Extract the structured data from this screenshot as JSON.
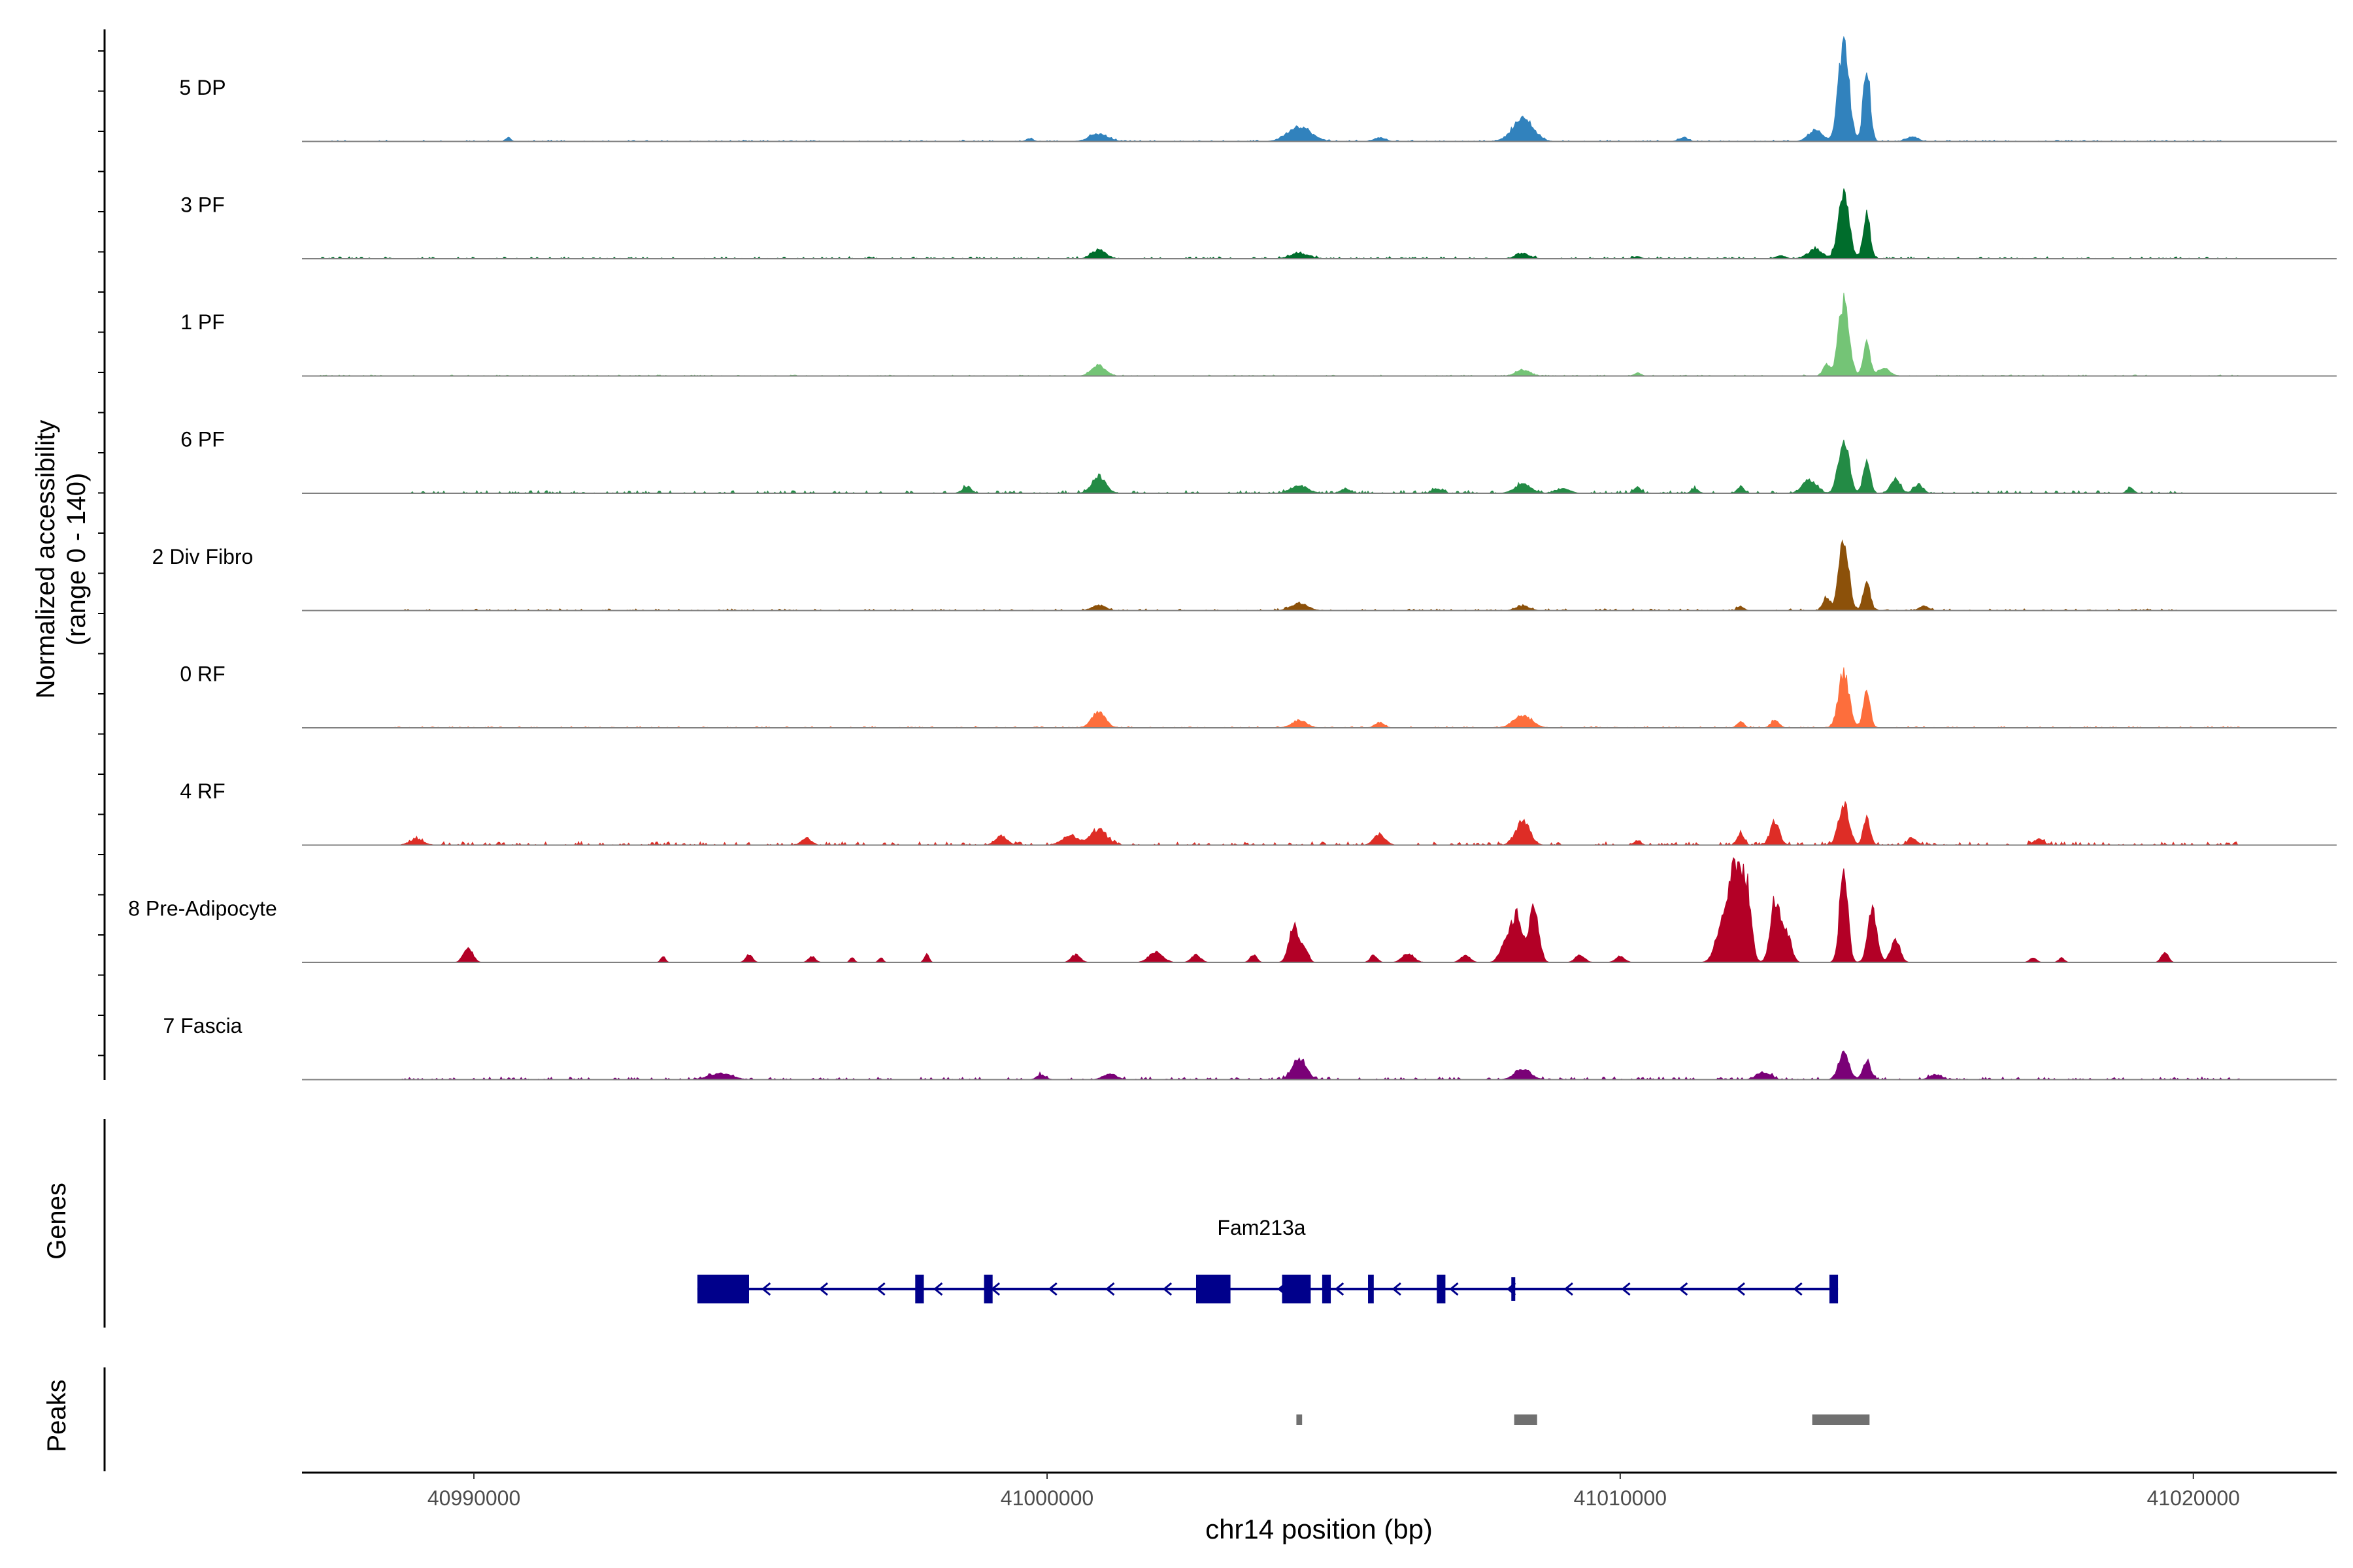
{
  "chart_data": {
    "type": "area",
    "title": "",
    "ylabel_line1": "Normalized accessibility",
    "ylabel_line2": "(range 0 - 140)",
    "y_range": [
      0,
      140
    ],
    "xlabel": "chr14 position (bp)",
    "xlim": [
      40987000,
      41022500
    ],
    "x_ticks": [
      40990000,
      41000000,
      41010000,
      41020000
    ],
    "x_tick_labels": [
      "40990000",
      "41000000",
      "41010000",
      "41020000"
    ],
    "tracks": [
      {
        "name": "5 DP",
        "color": "#3182bd",
        "noise": 0.02,
        "range": [
          40987300,
          41020800
        ],
        "peaks": [
          [
            40990600,
            40,
            6
          ],
          [
            40999700,
            60,
            4
          ],
          [
            41000900,
            160,
            10
          ],
          [
            41004400,
            200,
            20
          ],
          [
            41008300,
            180,
            30
          ],
          [
            41013900,
            90,
            135
          ],
          [
            41014300,
            60,
            100
          ],
          [
            41013400,
            120,
            15
          ],
          [
            41015100,
            100,
            6
          ],
          [
            41005800,
            100,
            5
          ],
          [
            41011100,
            80,
            5
          ]
        ]
      },
      {
        "name": "3 PF",
        "color": "#006d2c",
        "noise": 0.03,
        "range": [
          40987300,
          41020800
        ],
        "peaks": [
          [
            41000900,
            120,
            12
          ],
          [
            41004400,
            160,
            7
          ],
          [
            41008300,
            120,
            7
          ],
          [
            41010300,
            60,
            3
          ],
          [
            41013900,
            90,
            95
          ],
          [
            41014300,
            60,
            60
          ],
          [
            41013400,
            130,
            12
          ],
          [
            41012800,
            80,
            4
          ]
        ]
      },
      {
        "name": "1 PF",
        "color": "#74c476",
        "noise": 0.015,
        "range": [
          40987300,
          41020800
        ],
        "peaks": [
          [
            41000900,
            120,
            14
          ],
          [
            41008300,
            120,
            8
          ],
          [
            41010300,
            60,
            4
          ],
          [
            41013900,
            90,
            100
          ],
          [
            41014300,
            60,
            45
          ],
          [
            41013600,
            60,
            15
          ],
          [
            41014600,
            100,
            10
          ]
        ]
      },
      {
        "name": "6 PF",
        "color": "#238b45",
        "noise": 0.04,
        "range": [
          40988600,
          41019800
        ],
        "peaks": [
          [
            40998600,
            80,
            8
          ],
          [
            41000900,
            120,
            22
          ],
          [
            41004400,
            150,
            10
          ],
          [
            41005200,
            80,
            6
          ],
          [
            41006800,
            80,
            6
          ],
          [
            41008300,
            140,
            12
          ],
          [
            41009000,
            120,
            6
          ],
          [
            41010300,
            60,
            8
          ],
          [
            41011300,
            60,
            6
          ],
          [
            41012100,
            60,
            8
          ],
          [
            41013900,
            90,
            75
          ],
          [
            41014300,
            60,
            45
          ],
          [
            41014800,
            80,
            20
          ],
          [
            41015200,
            80,
            12
          ],
          [
            41013300,
            120,
            18
          ],
          [
            41018900,
            60,
            6
          ]
        ]
      },
      {
        "name": "2 Div Fibro",
        "color": "#8c510a",
        "noise": 0.025,
        "range": [
          40988600,
          41019800
        ],
        "peaks": [
          [
            41000900,
            120,
            7
          ],
          [
            41004400,
            150,
            9
          ],
          [
            41008300,
            120,
            6
          ],
          [
            41013900,
            80,
            100
          ],
          [
            41014300,
            60,
            40
          ],
          [
            41013600,
            60,
            18
          ],
          [
            41015300,
            80,
            6
          ],
          [
            41012100,
            60,
            5
          ]
        ]
      },
      {
        "name": "0 RF",
        "color": "#fd6e3c",
        "noise": 0.02,
        "range": [
          40988600,
          41020800
        ],
        "peaks": [
          [
            41000900,
            120,
            20
          ],
          [
            41004400,
            130,
            10
          ],
          [
            41005800,
            80,
            7
          ],
          [
            41008300,
            160,
            16
          ],
          [
            41012100,
            60,
            8
          ],
          [
            41012700,
            70,
            10
          ],
          [
            41013900,
            90,
            75
          ],
          [
            41014300,
            60,
            50
          ]
        ]
      },
      {
        "name": "4 RF",
        "color": "#de2d26",
        "noise": 0.05,
        "range": [
          40988600,
          41020800
        ],
        "peaks": [
          [
            40989000,
            120,
            8
          ],
          [
            40995800,
            80,
            10
          ],
          [
            40999200,
            100,
            12
          ],
          [
            41000400,
            140,
            12
          ],
          [
            41000900,
            140,
            20
          ],
          [
            41005800,
            100,
            14
          ],
          [
            41008300,
            120,
            32
          ],
          [
            41012100,
            60,
            15
          ],
          [
            41012700,
            80,
            30
          ],
          [
            41013900,
            90,
            55
          ],
          [
            41014300,
            60,
            35
          ],
          [
            41015100,
            80,
            8
          ],
          [
            41017300,
            80,
            8
          ],
          [
            41010300,
            60,
            6
          ]
        ]
      },
      {
        "name": "8 Pre-Adipocyte",
        "color": "#b30026",
        "noise": 0.0,
        "range": [
          40987300,
          41020800
        ],
        "peaks": [
          [
            40989900,
            80,
            20
          ],
          [
            41004300,
            80,
            50
          ],
          [
            41004500,
            60,
            20
          ],
          [
            41008200,
            100,
            60
          ],
          [
            41008500,
            80,
            75
          ],
          [
            41008000,
            100,
            22
          ],
          [
            41012000,
            90,
            120
          ],
          [
            41012200,
            80,
            105
          ],
          [
            41011800,
            120,
            55
          ],
          [
            41012700,
            80,
            85
          ],
          [
            41012900,
            80,
            40
          ],
          [
            41013900,
            70,
            125
          ],
          [
            41014400,
            80,
            68
          ],
          [
            41014800,
            80,
            30
          ],
          [
            41019500,
            60,
            14
          ],
          [
            41001900,
            120,
            14
          ],
          [
            41002600,
            80,
            10
          ],
          [
            41003600,
            60,
            10
          ],
          [
            41006300,
            100,
            12
          ],
          [
            41005700,
            60,
            10
          ],
          [
            41007300,
            80,
            10
          ],
          [
            41009300,
            80,
            10
          ],
          [
            41010000,
            80,
            8
          ],
          [
            41000500,
            80,
            10
          ],
          [
            40997900,
            40,
            12
          ],
          [
            40995900,
            60,
            8
          ],
          [
            40996600,
            40,
            6
          ],
          [
            40997100,
            40,
            6
          ],
          [
            40993300,
            40,
            8
          ],
          [
            40994800,
            60,
            10
          ],
          [
            41017200,
            60,
            6
          ],
          [
            41017700,
            50,
            6
          ]
        ]
      },
      {
        "name": "7 Fascia",
        "color": "#7a0177",
        "noise": 0.04,
        "range": [
          40988600,
          41020800
        ],
        "peaks": [
          [
            40994300,
            200,
            8
          ],
          [
            41004400,
            120,
            28
          ],
          [
            41008300,
            140,
            14
          ],
          [
            41013900,
            90,
            35
          ],
          [
            41014300,
            70,
            25
          ],
          [
            41012500,
            120,
            10
          ],
          [
            41015500,
            100,
            7
          ],
          [
            41001100,
            120,
            7
          ],
          [
            40999900,
            80,
            6
          ]
        ]
      }
    ],
    "genes_label": "Genes",
    "gene": {
      "name": "Fam213a",
      "color": "#00008b",
      "start": 40993900,
      "end": 41013800,
      "strand": "-",
      "exons": [
        [
          40993900,
          40994800,
          "thick"
        ],
        [
          41002600,
          41003200,
          "thick"
        ],
        [
          41004100,
          41004600,
          "thick"
        ],
        [
          40997700,
          40997850,
          "mid"
        ],
        [
          40998900,
          40999050,
          "mid"
        ],
        [
          41004800,
          41004950,
          "mid"
        ],
        [
          41005600,
          41005700,
          "mid"
        ],
        [
          41006800,
          41006950,
          "mid"
        ],
        [
          41013650,
          41013800,
          "mid"
        ],
        [
          41008100,
          41008150,
          "thin"
        ]
      ]
    },
    "peaks_label": "Peaks",
    "peak_regions": [
      [
        41004350,
        41004450
      ],
      [
        41008150,
        41008550
      ],
      [
        41013350,
        41014350
      ]
    ],
    "peak_color": "#707070"
  }
}
